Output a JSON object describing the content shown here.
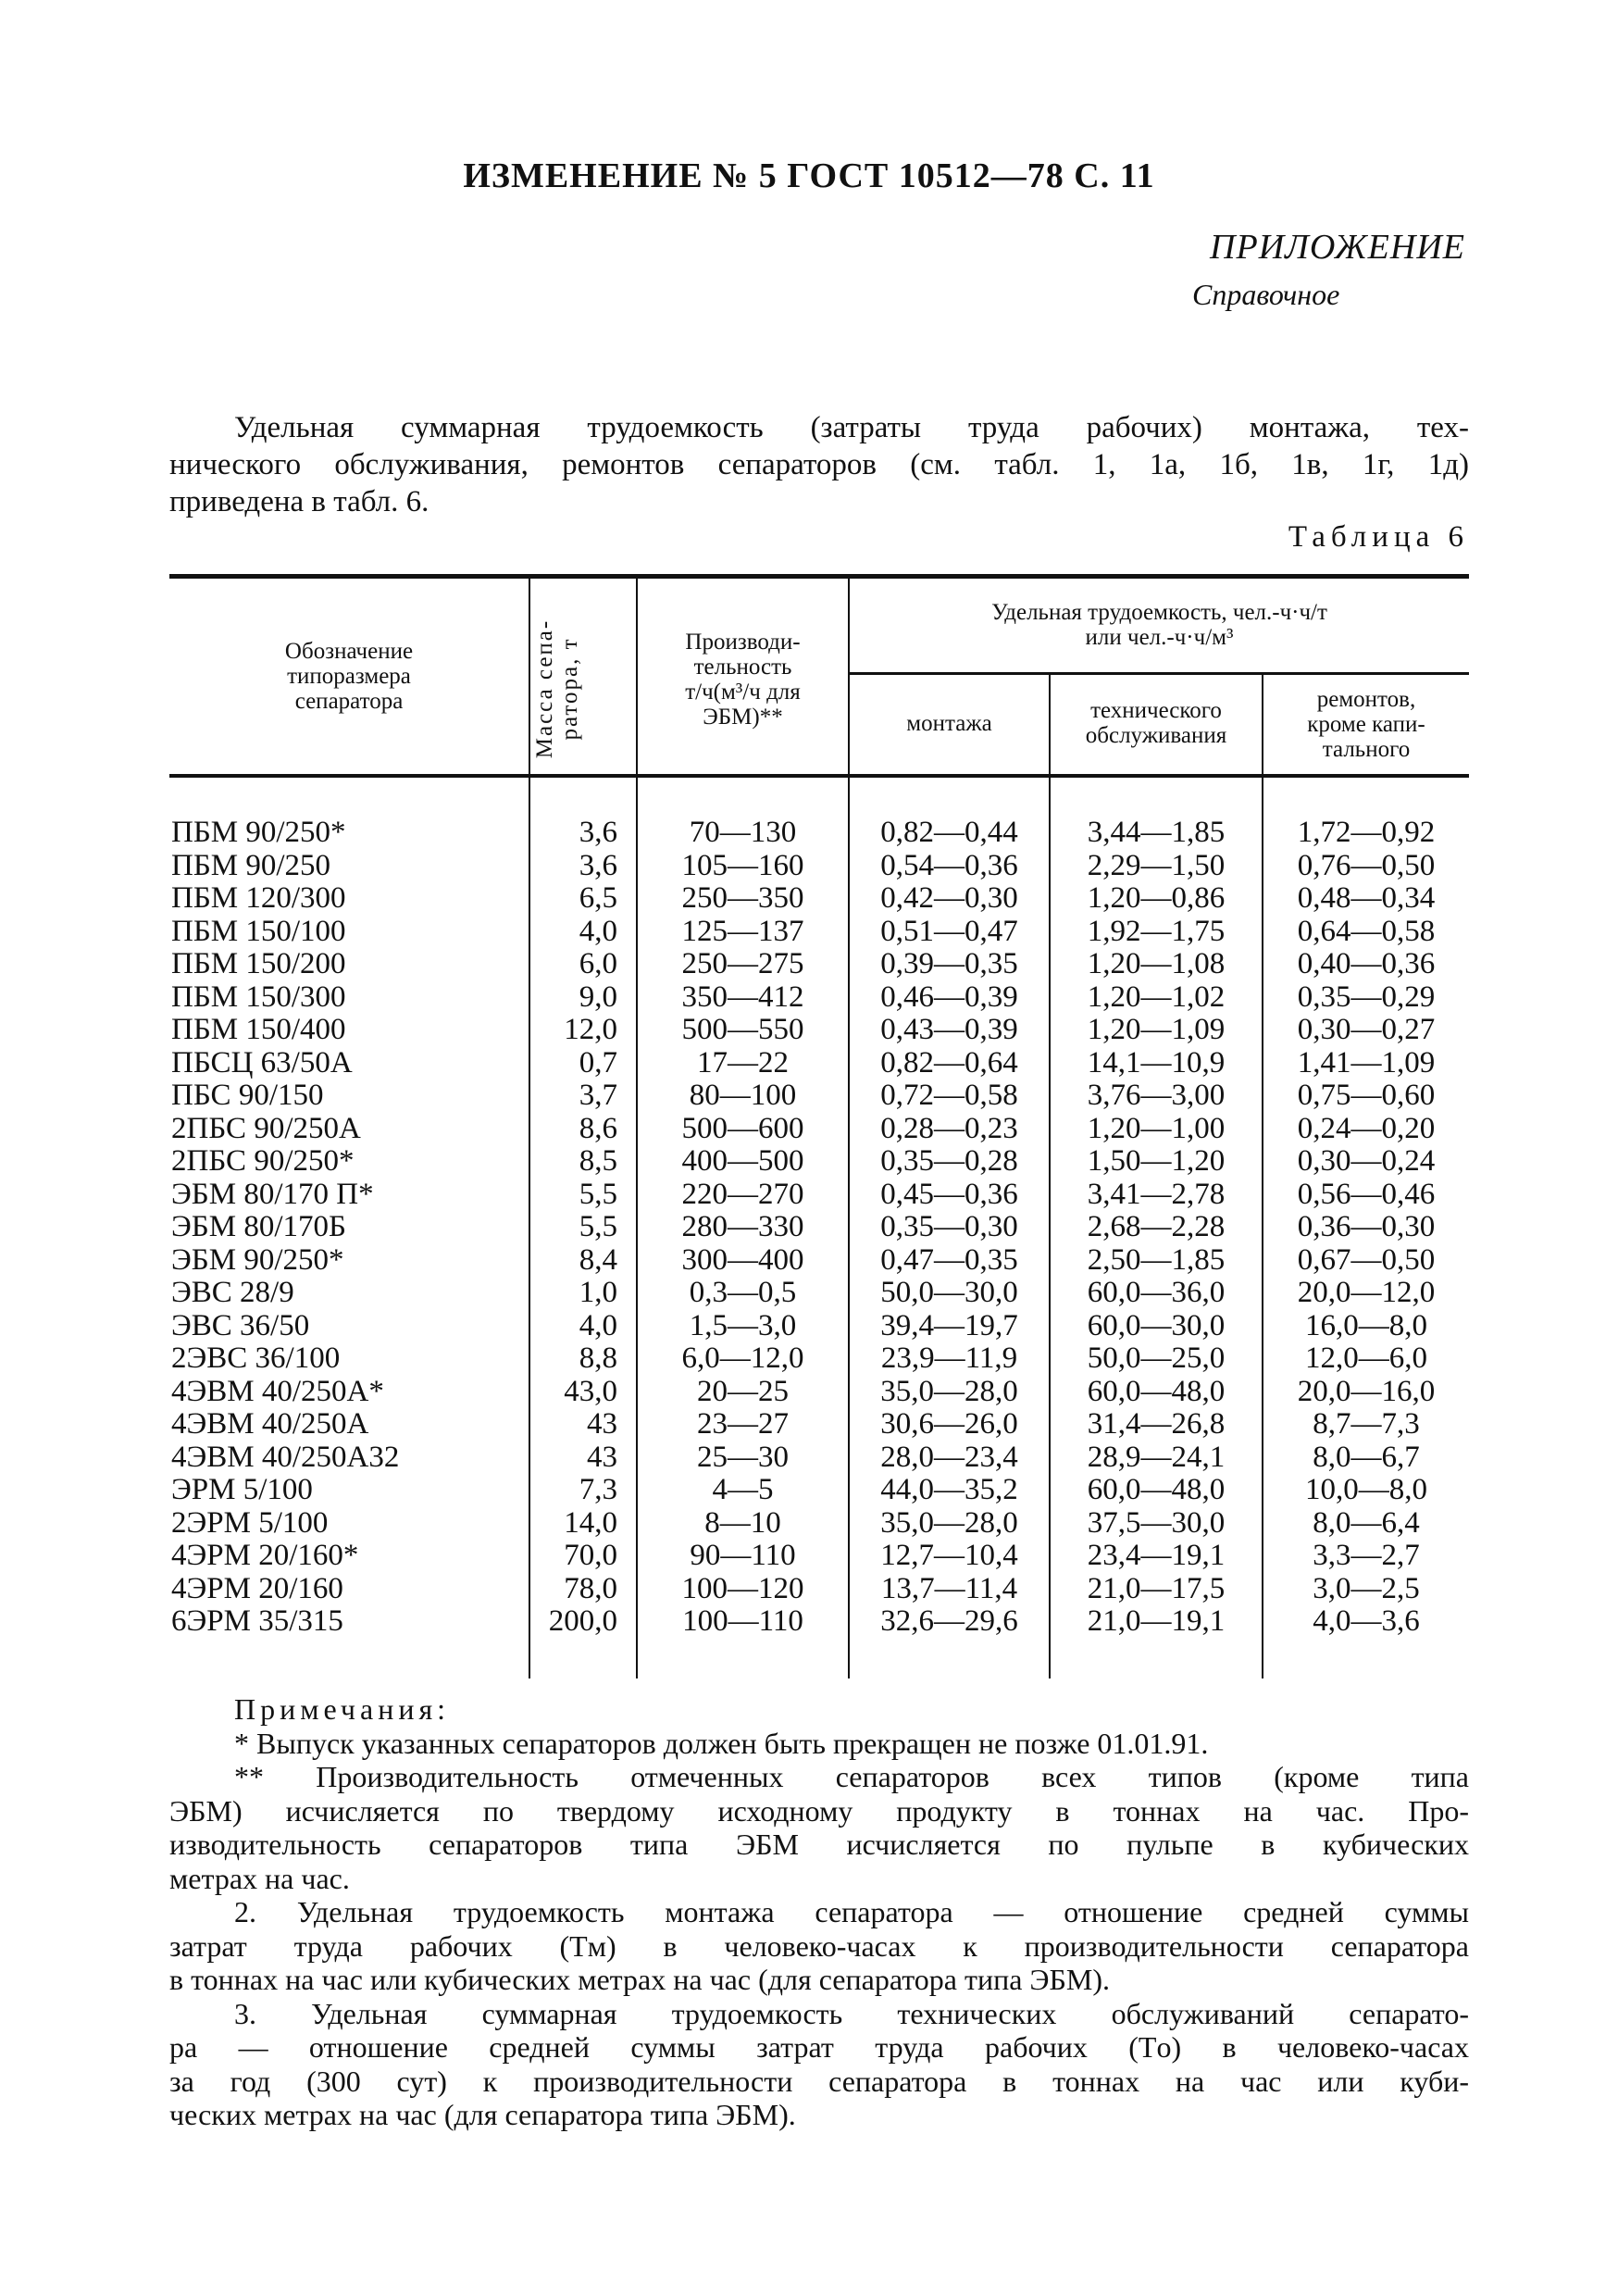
{
  "header": {
    "title": "ИЗМЕНЕНИЕ № 5 ГОСТ 10512—78 С. 11",
    "appendix": "ПРИЛОЖЕНИЕ",
    "appendix_type": "Справочное"
  },
  "intro": {
    "lines": [
      "Удельная суммарная трудоемкость (затраты труда рабочих) монтажа, тех-",
      "нического обслуживания, ремонтов сепараторов (см. табл. 1, 1а, 1б, 1в, 1г, 1д)",
      "приведена в табл. 6."
    ]
  },
  "table": {
    "caption": "Таблица 6",
    "headers": {
      "designation": [
        "Обозначение",
        "типоразмера",
        "сепаратора"
      ],
      "mass": [
        "Масса сепа-",
        "ратора, т"
      ],
      "productivity": [
        "Производи-",
        "тельность",
        "т/ч(м³/ч для",
        "ЭБМ)**"
      ],
      "labor_group": [
        "Удельная трудоемкость, чел.-ч·ч/т",
        "или чел.-ч·ч/м³"
      ],
      "mounting": [
        "монтажа"
      ],
      "maintenance": [
        "технического",
        "обслуживания"
      ],
      "repair": [
        "ремонтов,",
        "кроме капи-",
        "тального"
      ]
    },
    "rows": [
      [
        "ПБМ 90/250*",
        "3,6",
        "70—130",
        "0,82—0,44",
        "3,44—1,85",
        "1,72—0,92"
      ],
      [
        "ПБМ 90/250",
        "3,6",
        "105—160",
        "0,54—0,36",
        "2,29—1,50",
        "0,76—0,50"
      ],
      [
        "ПБМ 120/300",
        "6,5",
        "250—350",
        "0,42—0,30",
        "1,20—0,86",
        "0,48—0,34"
      ],
      [
        "ПБМ 150/100",
        "4,0",
        "125—137",
        "0,51—0,47",
        "1,92—1,75",
        "0,64—0,58"
      ],
      [
        "ПБМ 150/200",
        "6,0",
        "250—275",
        "0,39—0,35",
        "1,20—1,08",
        "0,40—0,36"
      ],
      [
        "ПБМ 150/300",
        "9,0",
        "350—412",
        "0,46—0,39",
        "1,20—1,02",
        "0,35—0,29"
      ],
      [
        "ПБМ 150/400",
        "12,0",
        "500—550",
        "0,43—0,39",
        "1,20—1,09",
        "0,30—0,27"
      ],
      [
        "ПБСЦ 63/50А",
        "0,7",
        "17—22",
        "0,82—0,64",
        "14,1—10,9",
        "1,41—1,09"
      ],
      [
        "ПБС 90/150",
        "3,7",
        "80—100",
        "0,72—0,58",
        "3,76—3,00",
        "0,75—0,60"
      ],
      [
        "2ПБС 90/250А",
        "8,6",
        "500—600",
        "0,28—0,23",
        "1,20—1,00",
        "0,24—0,20"
      ],
      [
        "2ПБС 90/250*",
        "8,5",
        "400—500",
        "0,35—0,28",
        "1,50—1,20",
        "0,30—0,24"
      ],
      [
        "ЭБМ 80/170 П*",
        "5,5",
        "220—270",
        "0,45—0,36",
        "3,41—2,78",
        "0,56—0,46"
      ],
      [
        "ЭБМ 80/170Б",
        "5,5",
        "280—330",
        "0,35—0,30",
        "2,68—2,28",
        "0,36—0,30"
      ],
      [
        "ЭБМ 90/250*",
        "8,4",
        "300—400",
        "0,47—0,35",
        "2,50—1,85",
        "0,67—0,50"
      ],
      [
        "ЭВС 28/9",
        "1,0",
        "0,3—0,5",
        "50,0—30,0",
        "60,0—36,0",
        "20,0—12,0"
      ],
      [
        "ЭВС 36/50",
        "4,0",
        "1,5—3,0",
        "39,4—19,7",
        "60,0—30,0",
        "16,0—8,0"
      ],
      [
        "2ЭВС 36/100",
        "8,8",
        "6,0—12,0",
        "23,9—11,9",
        "50,0—25,0",
        "12,0—6,0"
      ],
      [
        "4ЭВМ 40/250А*",
        "43,0",
        "20—25",
        "35,0—28,0",
        "60,0—48,0",
        "20,0—16,0"
      ],
      [
        "4ЭВМ 40/250А",
        "43",
        "23—27",
        "30,6—26,0",
        "31,4—26,8",
        "8,7—7,3"
      ],
      [
        "4ЭВМ 40/250А32",
        "43",
        "25—30",
        "28,0—23,4",
        "28,9—24,1",
        "8,0—6,7"
      ],
      [
        "ЭРМ 5/100",
        "7,3",
        "4—5",
        "44,0—35,2",
        "60,0—48,0",
        "10,0—8,0"
      ],
      [
        "2ЭРМ 5/100",
        "14,0",
        "8—10",
        "35,0—28,0",
        "37,5—30,0",
        "8,0—6,4"
      ],
      [
        "4ЭРМ 20/160*",
        "70,0",
        "90—110",
        "12,7—10,4",
        "23,4—19,1",
        "3,3—2,7"
      ],
      [
        "4ЭРМ 20/160",
        "78,0",
        "100—120",
        "13,7—11,4",
        "21,0—17,5",
        "3,0—2,5"
      ],
      [
        "6ЭРМ 35/315",
        "200,0",
        "100—110",
        "32,6—29,6",
        "21,0—19,1",
        "4,0—3,6"
      ]
    ]
  },
  "notes": {
    "heading": "Примечания:",
    "lines": [
      {
        "text": "* Выпуск указанных сепараторов должен быть прекращен не позже 01.01.91.",
        "indent": true,
        "last": true
      },
      {
        "text": "** Производительность отмеченных сепараторов всех типов (кроме типа",
        "indent": true,
        "last": false
      },
      {
        "text": "ЭБМ) исчисляется по твердому исходному продукту в тоннах на час. Про-",
        "indent": false,
        "last": false
      },
      {
        "text": "изводительность сепараторов типа ЭБМ исчисляется по пульпе в кубических",
        "indent": false,
        "last": false
      },
      {
        "text": "метрах на час.",
        "indent": false,
        "last": true
      },
      {
        "text": "2. Удельная трудоемкость монтажа сепаратора — отношение средней суммы",
        "indent": true,
        "last": false
      },
      {
        "text": "затрат труда рабочих (Tм) в человеко-часах к производительности сепаратора",
        "indent": false,
        "last": false
      },
      {
        "text": "в тоннах на час или кубических метрах на час (для сепаратора типа ЭБМ).",
        "indent": false,
        "last": true
      },
      {
        "text": "3. Удельная суммарная трудоемкость технических обслуживаний сепарато-",
        "indent": true,
        "last": false
      },
      {
        "text": "ра — отношение средней суммы затрат труда рабочих (Tо) в человеко-часах",
        "indent": false,
        "last": false
      },
      {
        "text": "за год (300 сут) к производительности сепаратора в тоннах на час или куби-",
        "indent": false,
        "last": false
      },
      {
        "text": "ческих метрах на час (для сепаратора типа ЭБМ).",
        "indent": false,
        "last": true
      }
    ]
  }
}
